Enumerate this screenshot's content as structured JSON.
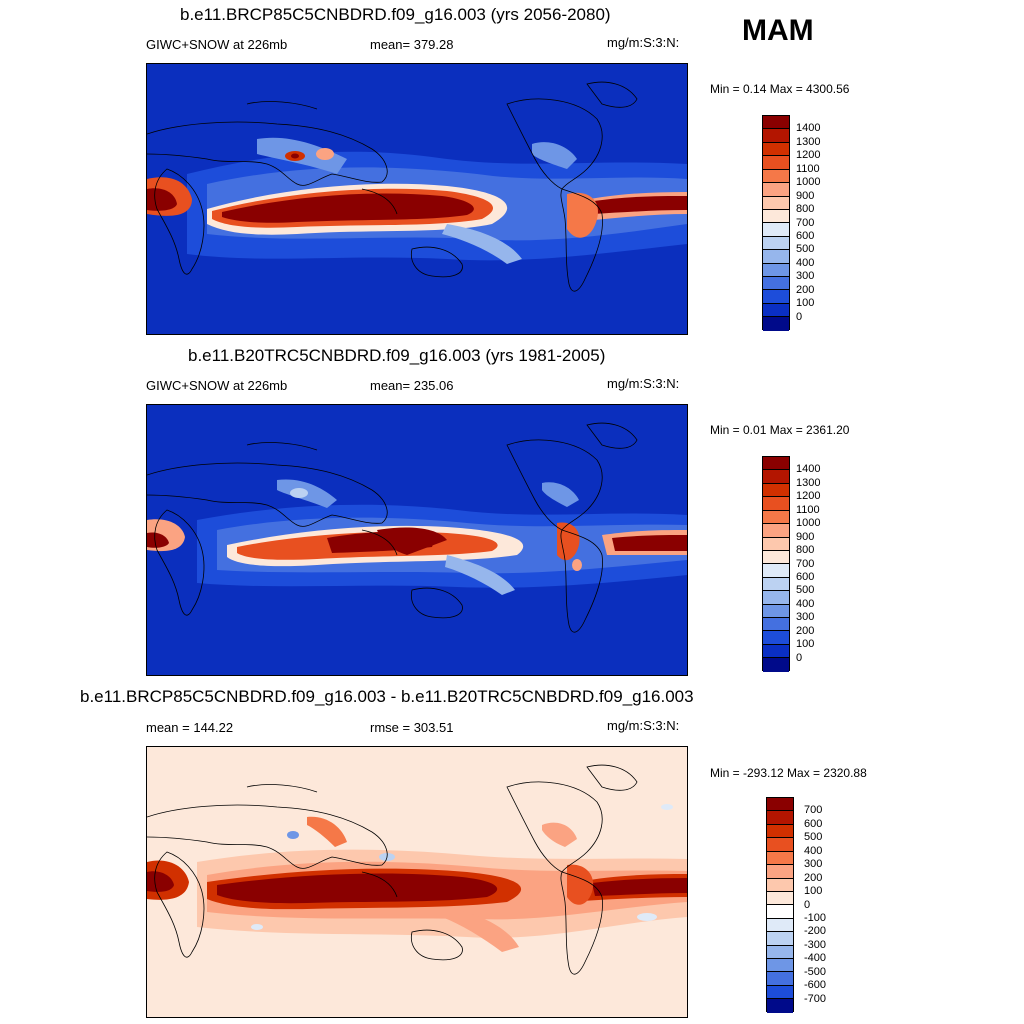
{
  "season": "MAM",
  "panels": [
    {
      "title": "b.e11.BRCP85C5CNBDRD.f09_g16.003 (yrs 2056-2080)",
      "left_label": "GIWC+SNOW at 226mb",
      "center_label": "mean= 379.28",
      "units": "mg/m:S:3:N:",
      "minmax": "Min =   0.14 Max = 4300.56",
      "colorbar": {
        "labels": [
          "1400",
          "1300",
          "1200",
          "1100",
          "1000",
          "900",
          "800",
          "700",
          "600",
          "500",
          "400",
          "300",
          "200",
          "100",
          "0"
        ],
        "colors": [
          "#8a0000",
          "#b31500",
          "#d13000",
          "#e85020",
          "#f57848",
          "#fba382",
          "#fdc8ad",
          "#fde8da",
          "#dfeaf8",
          "#bcd2f2",
          "#96b6ec",
          "#6e96e6",
          "#4470e0",
          "#1d4dda",
          "#0a2fc4",
          "#000a8a"
        ]
      },
      "background": "#0b2fbe"
    },
    {
      "title": "b.e11.B20TRC5CNBDRD.f09_g16.003 (yrs 1981-2005)",
      "left_label": "GIWC+SNOW at 226mb",
      "center_label": "mean= 235.06",
      "units": "mg/m:S:3:N:",
      "minmax": "Min =   0.01 Max = 2361.20",
      "colorbar": {
        "labels": [
          "1400",
          "1300",
          "1200",
          "1100",
          "1000",
          "900",
          "800",
          "700",
          "600",
          "500",
          "400",
          "300",
          "200",
          "100",
          "0"
        ],
        "colors": [
          "#8a0000",
          "#b31500",
          "#d13000",
          "#e85020",
          "#f57848",
          "#fba382",
          "#fdc8ad",
          "#fde8da",
          "#dfeaf8",
          "#bcd2f2",
          "#96b6ec",
          "#6e96e6",
          "#4470e0",
          "#1d4dda",
          "#0a2fc4",
          "#000a8a"
        ]
      },
      "background": "#0b2fbe"
    },
    {
      "title": "b.e11.BRCP85C5CNBDRD.f09_g16.003 - b.e11.B20TRC5CNBDRD.f09_g16.003",
      "left_label": "mean = 144.22",
      "center_label": "rmse = 303.51",
      "units": "mg/m:S:3:N:",
      "minmax": "Min = -293.12 Max = 2320.88",
      "colorbar": {
        "labels": [
          "700",
          "600",
          "500",
          "400",
          "300",
          "200",
          "100",
          "0",
          "-100",
          "-200",
          "-300",
          "-400",
          "-500",
          "-600",
          "-700"
        ],
        "colors": [
          "#8a0000",
          "#b31500",
          "#d13000",
          "#e85020",
          "#f57848",
          "#fba382",
          "#fdc8ad",
          "#fde8da",
          "#ffffff",
          "#dfeaf8",
          "#bcd2f2",
          "#96b6ec",
          "#6e96e6",
          "#4470e0",
          "#1d4dda",
          "#000a8a"
        ]
      },
      "background": "#fde8da"
    }
  ]
}
